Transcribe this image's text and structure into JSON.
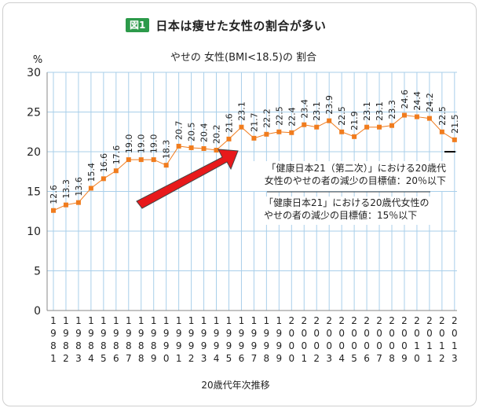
{
  "figure": {
    "badge": "図1",
    "title": "日本は痩せた女性の割合が多い"
  },
  "chart_data": {
    "type": "line",
    "title": "やせの 女性(BMI<18.5)の 割合",
    "ylabel": "%",
    "xlabel": "20歳代年次推移",
    "ylim": [
      0,
      30
    ],
    "yticks": [
      0,
      5,
      10,
      15,
      20,
      25,
      30
    ],
    "grid": true,
    "x": [
      "1981",
      "1982",
      "1983",
      "1984",
      "1985",
      "1986",
      "1987",
      "1988",
      "1989",
      "1990",
      "1991",
      "1992",
      "1993",
      "1994",
      "1995",
      "1996",
      "1997",
      "1998",
      "1999",
      "2000",
      "2001",
      "2002",
      "2003",
      "2004",
      "2005",
      "2006",
      "2007",
      "2008",
      "2009",
      "2010",
      "2011",
      "2012",
      "2013"
    ],
    "series": [
      {
        "values": [
          12.6,
          13.3,
          13.6,
          15.4,
          16.6,
          17.6,
          19.0,
          19.0,
          19.0,
          18.3,
          20.7,
          20.5,
          20.4,
          20.2,
          21.6,
          23.1,
          21.7,
          22.2,
          22.5,
          22.4,
          23.4,
          23.1,
          23.9,
          22.5,
          21.9,
          23.1,
          23.1,
          23.3,
          24.6,
          24.4,
          24.2,
          22.5,
          21.5
        ],
        "color": "#f07c1e"
      }
    ],
    "reference_line": {
      "value": 20,
      "color": "#000000"
    },
    "annotations": [
      {
        "text": "「健康日本21（第二次）」における20歳代女性のやせの者の減少の目標値：20％以下",
        "lines": [
          "「健康日本21（第二次）」における20歳代",
          "女性のやせの者の減少の目標値：20％以下"
        ]
      },
      {
        "text": "「健康日本21」における20歳代女性のやせの者の減少の目標値：15％以下",
        "lines": [
          "「健康日本21」における20歳代女性の",
          "やせの者の減少の目標値：15％以下"
        ]
      }
    ],
    "arrow_color": "#e8191b"
  }
}
